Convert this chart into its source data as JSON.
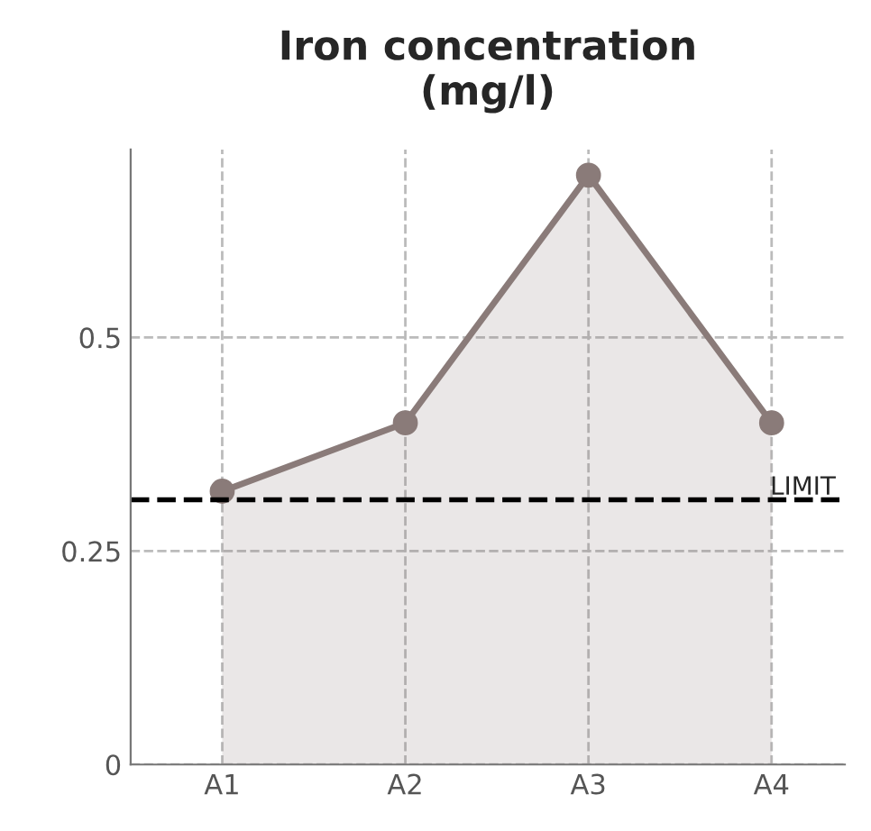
{
  "chart_data": {
    "type": "area",
    "title": "Iron concentration\n(mg/l)",
    "categories": [
      "A1",
      "A2",
      "A3",
      "A4"
    ],
    "series": [
      {
        "color": "#8a7b79",
        "values": [
          0.32,
          0.4,
          0.69,
          0.4
        ]
      }
    ],
    "ylim": [
      0,
      0.72
    ],
    "yticks": [
      0,
      0.25,
      0.5
    ],
    "ref_lines": [
      {
        "axis": "y",
        "value": 0.31,
        "label": "LIMIT",
        "color": "#000000",
        "line_style": "dashed"
      }
    ],
    "grid": true,
    "marker": "circle",
    "line_style": "solid"
  }
}
